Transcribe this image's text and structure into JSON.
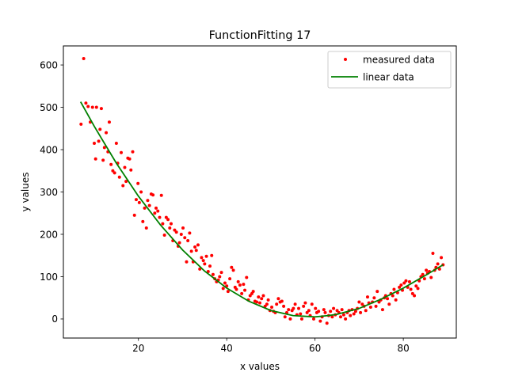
{
  "chart_data": {
    "type": "scatter",
    "title": "FunctionFitting 17",
    "xlabel": "x values",
    "ylabel": "y values",
    "xlim": [
      3,
      92
    ],
    "ylim": [
      -45,
      645
    ],
    "xticks": [
      20,
      40,
      60,
      80
    ],
    "yticks": [
      0,
      100,
      200,
      300,
      400,
      500,
      600
    ],
    "legend_position": "top-right",
    "series": [
      {
        "name": "measured data",
        "kind": "points",
        "color": "#ff0000",
        "points": [
          [
            7.0,
            460
          ],
          [
            7.6,
            615
          ],
          [
            8.1,
            510
          ],
          [
            8.6,
            502
          ],
          [
            9.1,
            465
          ],
          [
            9.6,
            500
          ],
          [
            10.0,
            415
          ],
          [
            10.3,
            378
          ],
          [
            10.5,
            500
          ],
          [
            11.0,
            420
          ],
          [
            11.3,
            448
          ],
          [
            11.6,
            497
          ],
          [
            12.0,
            375
          ],
          [
            12.3,
            405
          ],
          [
            12.7,
            440
          ],
          [
            13.1,
            395
          ],
          [
            13.4,
            465
          ],
          [
            13.8,
            365
          ],
          [
            14.2,
            350
          ],
          [
            14.6,
            345
          ],
          [
            15.0,
            415
          ],
          [
            15.3,
            368
          ],
          [
            15.7,
            335
          ],
          [
            16.1,
            393
          ],
          [
            16.5,
            315
          ],
          [
            16.9,
            358
          ],
          [
            17.2,
            325
          ],
          [
            17.6,
            380
          ],
          [
            18.0,
            378
          ],
          [
            18.3,
            352
          ],
          [
            18.7,
            395
          ],
          [
            19.1,
            245
          ],
          [
            19.5,
            282
          ],
          [
            19.9,
            320
          ],
          [
            20.2,
            275
          ],
          [
            20.6,
            300
          ],
          [
            21.0,
            230
          ],
          [
            21.4,
            262
          ],
          [
            21.8,
            215
          ],
          [
            22.1,
            280
          ],
          [
            22.5,
            268
          ],
          [
            22.9,
            295
          ],
          [
            23.3,
            293
          ],
          [
            23.7,
            250
          ],
          [
            24.0,
            262
          ],
          [
            24.4,
            255
          ],
          [
            24.8,
            240
          ],
          [
            25.2,
            292
          ],
          [
            25.5,
            225
          ],
          [
            25.9,
            198
          ],
          [
            26.3,
            240
          ],
          [
            26.7,
            235
          ],
          [
            27.1,
            215
          ],
          [
            27.4,
            225
          ],
          [
            27.8,
            185
          ],
          [
            28.2,
            210
          ],
          [
            28.6,
            205
          ],
          [
            29.0,
            172
          ],
          [
            29.3,
            180
          ],
          [
            29.7,
            200
          ],
          [
            30.1,
            215
          ],
          [
            30.5,
            192
          ],
          [
            30.9,
            135
          ],
          [
            31.2,
            185
          ],
          [
            31.6,
            203
          ],
          [
            32.0,
            160
          ],
          [
            32.4,
            135
          ],
          [
            32.8,
            170
          ],
          [
            33.1,
            162
          ],
          [
            33.5,
            175
          ],
          [
            33.9,
            118
          ],
          [
            34.3,
            145
          ],
          [
            34.7,
            138
          ],
          [
            35.0,
            130
          ],
          [
            35.4,
            148
          ],
          [
            35.8,
            112
          ],
          [
            36.2,
            125
          ],
          [
            36.6,
            150
          ],
          [
            36.9,
            105
          ],
          [
            37.3,
            95
          ],
          [
            37.7,
            88
          ],
          [
            38.1,
            92
          ],
          [
            38.4,
            100
          ],
          [
            38.8,
            110
          ],
          [
            39.2,
            72
          ],
          [
            39.6,
            85
          ],
          [
            40.0,
            78
          ],
          [
            40.3,
            65
          ],
          [
            40.7,
            95
          ],
          [
            41.1,
            122
          ],
          [
            41.5,
            115
          ],
          [
            41.9,
            75
          ],
          [
            42.2,
            70
          ],
          [
            42.6,
            88
          ],
          [
            43.0,
            80
          ],
          [
            43.4,
            60
          ],
          [
            43.8,
            82
          ],
          [
            44.1,
            68
          ],
          [
            44.5,
            98
          ],
          [
            44.9,
            45
          ],
          [
            45.3,
            55
          ],
          [
            45.7,
            60
          ],
          [
            46.0,
            65
          ],
          [
            46.4,
            42
          ],
          [
            46.8,
            40
          ],
          [
            47.2,
            52
          ],
          [
            47.5,
            38
          ],
          [
            47.9,
            48
          ],
          [
            48.3,
            55
          ],
          [
            48.7,
            30
          ],
          [
            49.1,
            35
          ],
          [
            49.4,
            45
          ],
          [
            49.8,
            20
          ],
          [
            50.2,
            28
          ],
          [
            50.6,
            18
          ],
          [
            51.0,
            15
          ],
          [
            51.3,
            35
          ],
          [
            51.7,
            48
          ],
          [
            52.1,
            40
          ],
          [
            52.5,
            42
          ],
          [
            52.9,
            30
          ],
          [
            53.2,
            5
          ],
          [
            53.6,
            15
          ],
          [
            54.0,
            22
          ],
          [
            54.4,
            0
          ],
          [
            54.8,
            20
          ],
          [
            55.1,
            25
          ],
          [
            55.5,
            35
          ],
          [
            55.9,
            10
          ],
          [
            56.3,
            25
          ],
          [
            56.7,
            12
          ],
          [
            57.0,
            0
          ],
          [
            57.4,
            30
          ],
          [
            57.8,
            38
          ],
          [
            58.2,
            15
          ],
          [
            58.6,
            20
          ],
          [
            58.9,
            8
          ],
          [
            59.3,
            35
          ],
          [
            59.7,
            0
          ],
          [
            60.1,
            25
          ],
          [
            60.4,
            15
          ],
          [
            60.8,
            18
          ],
          [
            61.2,
            -5
          ],
          [
            61.6,
            5
          ],
          [
            62.0,
            22
          ],
          [
            62.3,
            15
          ],
          [
            62.7,
            -10
          ],
          [
            63.1,
            8
          ],
          [
            63.5,
            18
          ],
          [
            63.9,
            5
          ],
          [
            64.2,
            25
          ],
          [
            64.6,
            10
          ],
          [
            65.0,
            20
          ],
          [
            65.4,
            15
          ],
          [
            65.8,
            5
          ],
          [
            66.1,
            22
          ],
          [
            66.5,
            10
          ],
          [
            66.9,
            0
          ],
          [
            67.3,
            15
          ],
          [
            67.7,
            20
          ],
          [
            68.0,
            8
          ],
          [
            68.4,
            22
          ],
          [
            68.8,
            12
          ],
          [
            69.2,
            18
          ],
          [
            69.6,
            25
          ],
          [
            70.0,
            40
          ],
          [
            70.3,
            15
          ],
          [
            70.7,
            35
          ],
          [
            71.1,
            30
          ],
          [
            71.5,
            20
          ],
          [
            71.9,
            52
          ],
          [
            72.2,
            38
          ],
          [
            72.6,
            28
          ],
          [
            73.0,
            40
          ],
          [
            73.4,
            50
          ],
          [
            73.8,
            30
          ],
          [
            74.1,
            65
          ],
          [
            74.5,
            40
          ],
          [
            74.9,
            45
          ],
          [
            75.3,
            22
          ],
          [
            75.7,
            50
          ],
          [
            76.0,
            55
          ],
          [
            76.4,
            48
          ],
          [
            76.8,
            35
          ],
          [
            77.2,
            60
          ],
          [
            77.6,
            55
          ],
          [
            77.9,
            70
          ],
          [
            78.3,
            45
          ],
          [
            78.7,
            62
          ],
          [
            79.1,
            75
          ],
          [
            79.5,
            80
          ],
          [
            79.8,
            68
          ],
          [
            80.2,
            85
          ],
          [
            80.6,
            90
          ],
          [
            81.0,
            75
          ],
          [
            81.4,
            88
          ],
          [
            81.7,
            70
          ],
          [
            82.1,
            60
          ],
          [
            82.5,
            55
          ],
          [
            82.9,
            78
          ],
          [
            83.3,
            72
          ],
          [
            83.6,
            90
          ],
          [
            84.0,
            100
          ],
          [
            84.4,
            105
          ],
          [
            84.8,
            95
          ],
          [
            85.2,
            115
          ],
          [
            85.5,
            108
          ],
          [
            85.9,
            112
          ],
          [
            86.3,
            98
          ],
          [
            86.7,
            155
          ],
          [
            87.1,
            115
          ],
          [
            87.4,
            122
          ],
          [
            87.8,
            130
          ],
          [
            88.2,
            118
          ],
          [
            88.6,
            145
          ],
          [
            89.0,
            128
          ]
        ]
      },
      {
        "name": "linear data",
        "kind": "line",
        "color": "#008000",
        "x": [
          6.9,
          10,
          15,
          20,
          25,
          30,
          35,
          40,
          45,
          50,
          55,
          60,
          63,
          65,
          70,
          75,
          80,
          85,
          89
        ],
        "y": [
          513,
          455,
          368,
          290,
          222,
          163,
          113,
          73,
          42,
          20,
          8,
          5,
          8,
          11,
          25,
          47,
          73,
          103,
          128
        ]
      }
    ]
  }
}
